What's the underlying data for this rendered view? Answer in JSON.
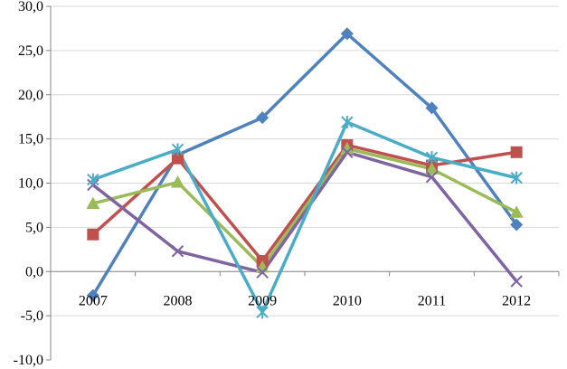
{
  "chart_data": {
    "type": "line",
    "title": "",
    "xlabel": "",
    "ylabel": "",
    "categories": [
      "2007",
      "2008",
      "2009",
      "2010",
      "2011",
      "2012"
    ],
    "ylim": [
      -10,
      30
    ],
    "ytick_step": 5,
    "y_tick_labels": [
      "-10,0",
      "-5,0",
      "0,0",
      "5,0",
      "10,0",
      "15,0",
      "20,0",
      "25,0",
      "30,0"
    ],
    "grid": true,
    "legend": "none",
    "series": [
      {
        "color": "#4f81bd",
        "marker": "diamond",
        "values": [
          -2.7,
          13.2,
          17.4,
          26.9,
          18.5,
          5.3
        ]
      },
      {
        "color": "#c0504d",
        "marker": "square",
        "values": [
          4.2,
          12.8,
          1.2,
          14.3,
          12.0,
          13.5
        ]
      },
      {
        "color": "#9bbb59",
        "marker": "triangle",
        "values": [
          7.7,
          10.1,
          0.5,
          13.9,
          11.6,
          6.7
        ]
      },
      {
        "color": "#8064a2",
        "marker": "x",
        "values": [
          9.8,
          2.3,
          -0.1,
          13.5,
          10.7,
          -1.1
        ]
      },
      {
        "color": "#4bacc6",
        "marker": "asterisk",
        "values": [
          10.4,
          13.8,
          -4.6,
          16.9,
          12.9,
          10.6
        ]
      }
    ]
  }
}
